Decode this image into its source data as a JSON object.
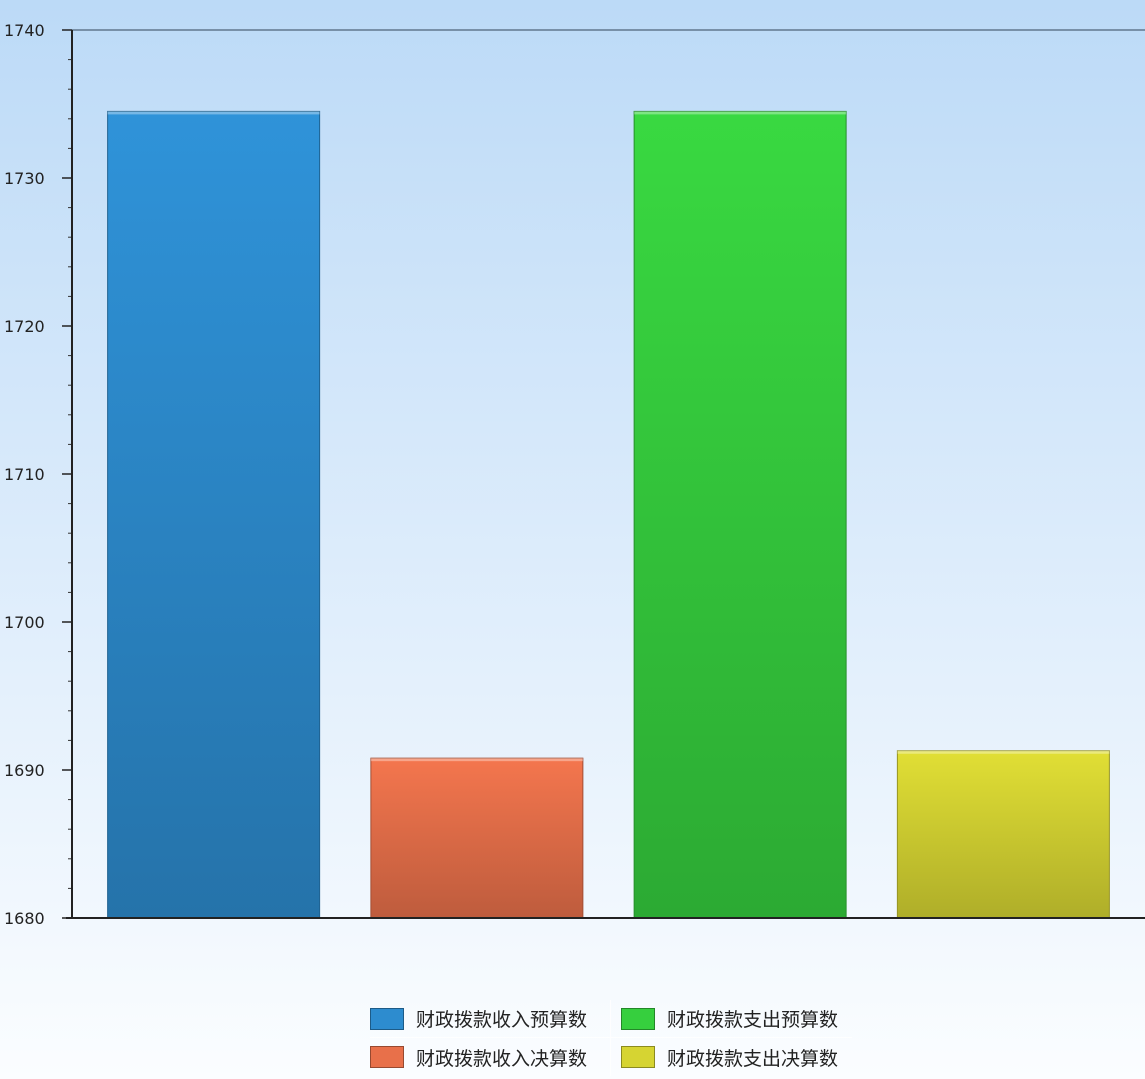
{
  "chart_data": {
    "type": "bar",
    "categories": [
      "财政拨款收入预算数",
      "财政拨款收入决算数",
      "财政拨款支出预算数",
      "财政拨款支出决算数"
    ],
    "values": [
      1734.5,
      1690.8,
      1734.5,
      1691.3
    ],
    "colors": [
      "#2d8ccf",
      "#e8704a",
      "#36cf3e",
      "#d6d432"
    ],
    "ylim": [
      1680,
      1740
    ],
    "yticks": [
      1680,
      1690,
      1700,
      1710,
      1720,
      1730,
      1740
    ],
    "grid": false,
    "legend_position": "bottom"
  },
  "legend": {
    "items": [
      {
        "label": "财政拨款收入预算数",
        "color": "#2d8ccf"
      },
      {
        "label": "财政拨款支出预算数",
        "color": "#36cf3e"
      },
      {
        "label": "财政拨款收入决算数",
        "color": "#e8704a"
      },
      {
        "label": "财政拨款支出决算数",
        "color": "#d6d432"
      }
    ]
  }
}
